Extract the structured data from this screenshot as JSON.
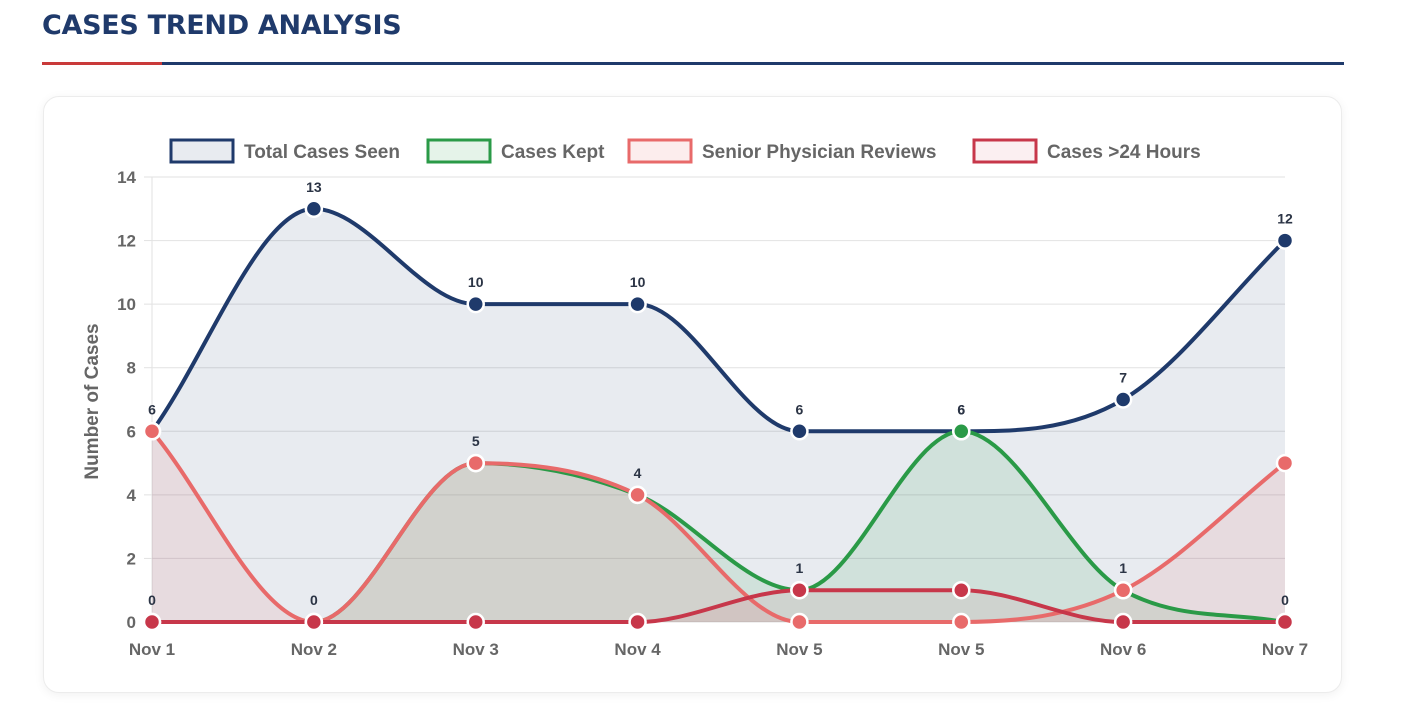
{
  "header": {
    "title": "CASES TREND ANALYSIS"
  },
  "colors": {
    "title": "#1f3a6b",
    "accent": "#c93a3a",
    "grid": "#e2e2e2",
    "axis_text": "#666666"
  },
  "chart_data": {
    "type": "line",
    "title": "",
    "xlabel": "",
    "ylabel": "Number of Cases",
    "ylim": [
      0,
      14
    ],
    "yticks": [
      0,
      2,
      4,
      6,
      8,
      10,
      12,
      14
    ],
    "grid": true,
    "legend_position": "top",
    "categories": [
      "Nov 1",
      "Nov 2",
      "Nov 3",
      "Nov 4",
      "Nov 5",
      "Nov 5",
      "Nov 6",
      "Nov 7"
    ],
    "series": [
      {
        "name": "Total Cases Seen",
        "color": "#1f3a6b",
        "fill": "rgba(31,58,107,0.10)",
        "values": [
          6,
          13,
          10,
          10,
          6,
          6,
          7,
          12
        ]
      },
      {
        "name": "Cases Kept",
        "color": "#2a9a47",
        "fill": "rgba(42,154,71,0.12)",
        "values": [
          0,
          0,
          5,
          4,
          1,
          6,
          1,
          0
        ]
      },
      {
        "name": "Senior Physician Reviews",
        "color": "#e86a6a",
        "fill": "rgba(232,106,106,0.12)",
        "values": [
          6,
          0,
          5,
          4,
          0,
          0,
          1,
          5
        ]
      },
      {
        "name": "Cases >24 Hours",
        "color": "#c7374a",
        "fill": "rgba(199,55,74,0.08)",
        "values": [
          0,
          0,
          0,
          0,
          1,
          1,
          0,
          0
        ]
      }
    ]
  }
}
